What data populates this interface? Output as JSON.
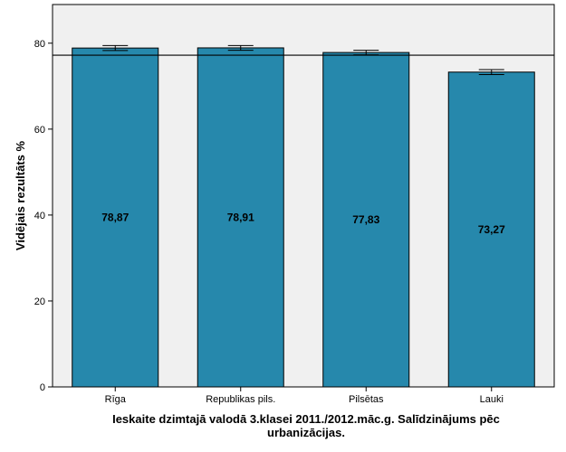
{
  "chart_data": {
    "type": "bar",
    "categories": [
      "Rīga",
      "Republikas pils.",
      "Pilsētas",
      "Lauki"
    ],
    "values": [
      78.87,
      78.91,
      77.83,
      73.27
    ],
    "value_labels": [
      "78,87",
      "78,91",
      "77,83",
      "73,27"
    ],
    "error_bars": [
      [
        78.3,
        79.45
      ],
      [
        78.35,
        79.45
      ],
      [
        77.3,
        78.35
      ],
      [
        72.7,
        73.85
      ]
    ],
    "reference_line": 77.2,
    "ylabel": "Vidējais rezultāts %",
    "xlabel_lines": [
      "Ieskaite dzimtajā valodā 3.klasei 2011./2012.māc.g. Salīdzinājums pēc",
      "urbanizācijas."
    ],
    "ylim": [
      0,
      89
    ],
    "yticks": [
      0,
      20,
      40,
      60,
      80
    ],
    "grid": false,
    "bar_color": "#2688ac",
    "plot_background": "#f0f0f0"
  }
}
